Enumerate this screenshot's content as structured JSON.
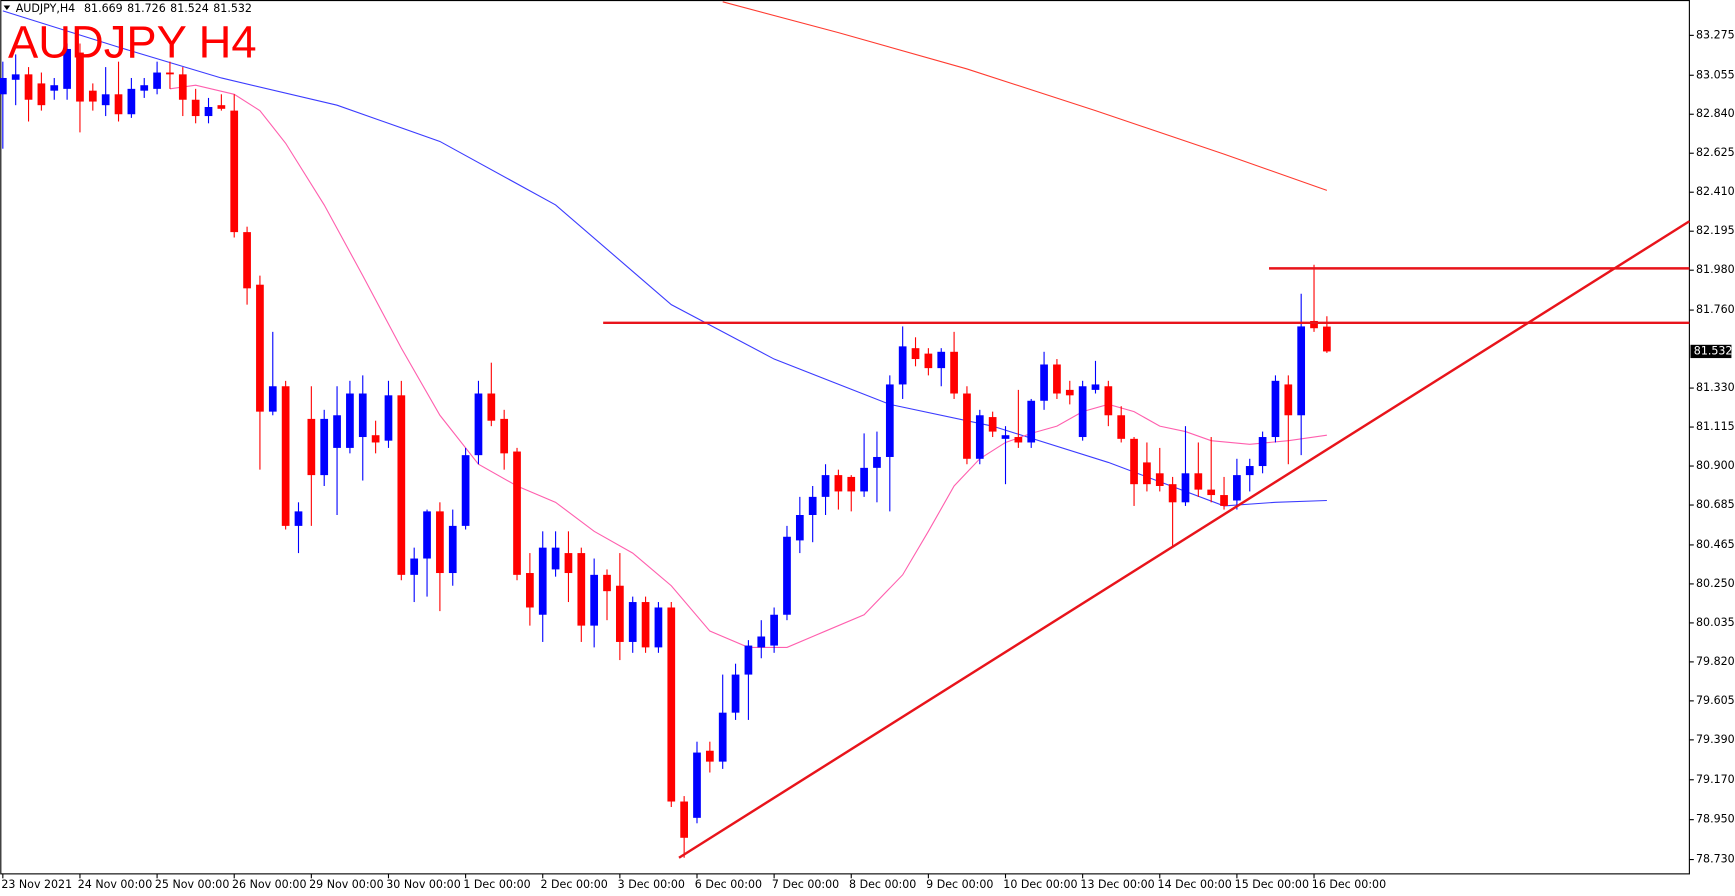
{
  "chart_data": {
    "type": "candlestick",
    "title": "AUDJPY H4",
    "header": {
      "symbol": "AUDJPY,H4",
      "open": 81.669,
      "high": 81.726,
      "low": 81.524,
      "close": 81.532
    },
    "up_color": "#0000ff",
    "down_color": "#ff0000",
    "open": [
      82.95,
      83.03,
      83.06,
      83.01,
      82.97,
      82.98,
      83.18,
      82.97,
      82.89,
      82.95,
      82.84,
      82.97,
      82.98,
      83.07,
      83.06,
      82.92,
      82.83,
      82.89,
      82.86,
      82.19,
      81.9,
      81.2,
      81.34,
      80.57,
      81.16,
      80.85,
      81.0,
      81.0,
      81.06,
      81.07,
      81.04,
      81.29,
      80.3,
      80.39,
      80.65,
      80.31,
      80.57,
      80.96,
      81.3,
      81.16,
      80.98,
      80.31,
      80.08,
      80.33,
      80.42,
      80.42,
      80.02,
      80.3,
      80.24,
      79.93,
      80.15,
      79.9,
      80.12,
      79.05,
      78.96,
      79.33,
      79.27,
      79.54,
      79.75,
      79.9,
      79.91,
      80.08,
      80.49,
      80.63,
      80.73,
      80.85,
      80.84,
      80.76,
      80.89,
      80.95,
      81.35,
      81.55,
      81.52,
      81.44,
      81.53,
      81.3,
      80.94,
      81.17,
      81.05,
      81.06,
      81.03,
      81.26,
      81.46,
      81.32,
      81.06,
      81.32,
      81.34,
      81.18,
      81.05,
      80.92,
      80.86,
      80.8,
      80.7,
      80.86,
      80.77,
      80.74,
      80.71,
      80.85,
      80.9,
      81.06,
      81.35,
      81.18,
      81.7,
      81.669
    ],
    "high": [
      83.13,
      83.17,
      83.1,
      83.07,
      83.04,
      83.23,
      83.23,
      83.01,
      83.1,
      83.13,
      83.04,
      83.04,
      83.13,
      83.13,
      83.1,
      82.98,
      82.93,
      82.95,
      82.95,
      82.22,
      81.95,
      81.64,
      81.37,
      80.7,
      81.34,
      81.21,
      81.34,
      81.37,
      81.4,
      81.15,
      81.37,
      81.37,
      80.45,
      80.66,
      80.7,
      80.66,
      81.0,
      81.37,
      81.47,
      81.21,
      81.0,
      80.42,
      80.54,
      80.54,
      80.54,
      80.45,
      80.39,
      80.33,
      80.42,
      80.18,
      80.18,
      80.15,
      80.15,
      79.08,
      79.38,
      79.38,
      79.75,
      79.81,
      79.94,
      80.05,
      80.12,
      80.57,
      80.73,
      80.79,
      80.91,
      80.88,
      80.85,
      81.08,
      81.09,
      81.4,
      81.67,
      81.61,
      81.55,
      81.55,
      81.64,
      81.34,
      81.21,
      81.2,
      81.12,
      81.32,
      81.27,
      81.53,
      81.49,
      81.37,
      81.37,
      81.48,
      81.37,
      81.23,
      81.06,
      81.03,
      81.0,
      80.84,
      81.12,
      81.03,
      81.06,
      80.84,
      80.94,
      80.94,
      81.09,
      81.4,
      81.4,
      81.85,
      82.01,
      81.726
    ],
    "low": [
      82.65,
      82.89,
      82.8,
      82.86,
      82.92,
      82.92,
      82.74,
      82.86,
      82.83,
      82.8,
      82.82,
      82.93,
      82.95,
      82.98,
      82.83,
      82.79,
      82.79,
      82.86,
      82.16,
      81.79,
      80.88,
      81.18,
      80.55,
      80.42,
      80.57,
      80.79,
      80.63,
      80.97,
      80.82,
      80.97,
      81.0,
      80.27,
      80.15,
      80.18,
      80.1,
      80.24,
      80.55,
      80.91,
      81.12,
      80.88,
      80.27,
      80.02,
      79.93,
      80.29,
      80.15,
      79.93,
      79.9,
      80.05,
      79.83,
      79.87,
      79.87,
      79.87,
      79.02,
      78.74,
      78.93,
      79.21,
      79.23,
      79.5,
      79.5,
      79.84,
      79.87,
      80.05,
      80.42,
      80.48,
      80.63,
      80.66,
      80.65,
      80.73,
      80.7,
      80.65,
      81.27,
      81.45,
      81.4,
      81.34,
      81.27,
      80.91,
      80.91,
      81.06,
      80.8,
      81.0,
      81.0,
      81.21,
      81.27,
      81.24,
      81.04,
      81.3,
      81.12,
      81.03,
      80.68,
      80.76,
      80.76,
      80.45,
      80.68,
      80.73,
      80.7,
      80.66,
      80.66,
      80.76,
      80.86,
      81.03,
      80.91,
      80.96,
      81.64,
      81.524
    ],
    "close": [
      83.04,
      83.06,
      82.92,
      82.89,
      83.0,
      83.2,
      82.91,
      82.91,
      82.95,
      82.84,
      82.98,
      83.0,
      83.07,
      83.06,
      82.92,
      82.83,
      82.88,
      82.87,
      82.19,
      81.88,
      81.2,
      81.34,
      80.57,
      80.65,
      80.85,
      81.16,
      81.18,
      81.3,
      81.3,
      81.03,
      81.29,
      80.3,
      80.39,
      80.65,
      80.31,
      80.57,
      80.96,
      81.3,
      81.15,
      80.97,
      80.3,
      80.12,
      80.45,
      80.45,
      80.31,
      80.02,
      80.3,
      80.21,
      79.93,
      80.15,
      79.9,
      80.12,
      79.05,
      78.85,
      79.32,
      79.27,
      79.54,
      79.75,
      79.91,
      79.96,
      80.08,
      80.51,
      80.63,
      80.73,
      80.85,
      80.76,
      80.76,
      80.89,
      80.95,
      81.35,
      81.56,
      81.49,
      81.44,
      81.53,
      81.3,
      80.94,
      81.18,
      81.09,
      81.07,
      81.03,
      81.26,
      81.46,
      81.3,
      81.29,
      81.34,
      81.35,
      81.18,
      81.05,
      80.8,
      80.8,
      80.79,
      80.7,
      80.86,
      80.77,
      80.74,
      80.68,
      80.85,
      80.9,
      81.06,
      81.37,
      81.18,
      81.67,
      81.66,
      81.532
    ],
    "last_price": 81.532,
    "moving_averages": [
      {
        "color": "#ff3b30",
        "x": [
          56,
          65,
          75,
          85,
          95,
          103
        ],
        "values": [
          83.46,
          83.29,
          83.09,
          82.86,
          82.62,
          82.42
        ]
      },
      {
        "color": "#3c3cff",
        "x": [
          0,
          9,
          17,
          26,
          34,
          43,
          52,
          60,
          69,
          77,
          86,
          95,
          99,
          103
        ],
        "values": [
          83.41,
          83.21,
          83.04,
          82.89,
          82.69,
          82.34,
          81.79,
          81.49,
          81.24,
          81.12,
          80.92,
          80.68,
          80.7,
          80.71
        ]
      },
      {
        "color": "#ff5fae",
        "x": [
          13,
          15,
          18,
          20,
          22,
          25,
          28,
          31,
          34,
          37,
          40,
          43,
          46,
          49,
          52,
          55,
          58,
          61,
          64,
          67,
          70,
          72,
          74,
          76,
          78,
          80,
          82,
          84,
          86,
          88,
          90,
          92,
          94,
          97,
          100,
          103
        ],
        "values": [
          82.98,
          83.0,
          82.95,
          82.86,
          82.68,
          82.34,
          81.95,
          81.55,
          81.18,
          80.91,
          80.79,
          80.7,
          80.54,
          80.42,
          80.24,
          79.99,
          79.9,
          79.9,
          79.99,
          80.08,
          80.3,
          80.54,
          80.79,
          80.94,
          81.03,
          81.08,
          81.12,
          81.2,
          81.24,
          81.2,
          81.12,
          81.09,
          81.04,
          81.02,
          81.04,
          81.07
        ]
      }
    ],
    "lines": [
      {
        "color": "#e8141b",
        "x": [
          46.7,
          131.2
        ],
        "values": [
          81.69,
          81.69
        ]
      },
      {
        "color": "#e8141b",
        "x": [
          98.5,
          131.2
        ],
        "values": [
          81.99,
          81.99
        ]
      },
      {
        "color": "#e8141b",
        "x": [
          52.6,
          131.2
        ],
        "values": [
          78.74,
          82.25
        ]
      }
    ],
    "xlim": [
      -0.2,
      131.2
    ],
    "ylim": [
      78.651,
      83.47
    ],
    "yticks": [
      83.275,
      83.055,
      {
        "value": 82.84,
        "label": "82.840"
      },
      82.625,
      {
        "value": 82.41,
        "label": "82.410"
      },
      82.195,
      {
        "value": 81.98,
        "label": "81.980"
      },
      {
        "value": 81.76,
        "label": "81.760"
      },
      {
        "value": 81.33,
        "label": "81.330"
      },
      81.115,
      {
        "value": 80.9,
        "label": "80.900"
      },
      80.685,
      80.465,
      {
        "value": 80.25,
        "label": "80.250"
      },
      80.035,
      {
        "value": 79.82,
        "label": "79.820"
      },
      79.605,
      {
        "value": 79.39,
        "label": "79.390"
      },
      {
        "value": 79.17,
        "label": "79.170"
      },
      {
        "value": 78.95,
        "label": "78.950"
      },
      {
        "value": 78.73,
        "label": "78.730"
      }
    ],
    "xticks": [
      {
        "value": 0,
        "label": "23 Nov 2021"
      },
      {
        "value": 6,
        "label": "24 Nov 00:00"
      },
      {
        "value": 12,
        "label": "25 Nov 00:00"
      },
      {
        "value": 18,
        "label": "26 Nov 00:00"
      },
      {
        "value": 24,
        "label": "29 Nov 00:00"
      },
      {
        "value": 30,
        "label": "30 Nov 00:00"
      },
      {
        "value": 36,
        "label": "1 Dec 00:00"
      },
      {
        "value": 42,
        "label": "2 Dec 00:00"
      },
      {
        "value": 48,
        "label": "3 Dec 00:00"
      },
      {
        "value": 54,
        "label": "6 Dec 00:00"
      },
      {
        "value": 60,
        "label": "7 Dec 00:00"
      },
      {
        "value": 66,
        "label": "8 Dec 00:00"
      },
      {
        "value": 72,
        "label": "9 Dec 00:00"
      },
      {
        "value": 78,
        "label": "10 Dec 00:00"
      },
      {
        "value": 84,
        "label": "13 Dec 00:00"
      },
      {
        "value": 90,
        "label": "14 Dec 00:00"
      },
      {
        "value": 96,
        "label": "15 Dec 00:00"
      },
      {
        "value": 102,
        "label": "16 Dec 00:00"
      }
    ]
  }
}
